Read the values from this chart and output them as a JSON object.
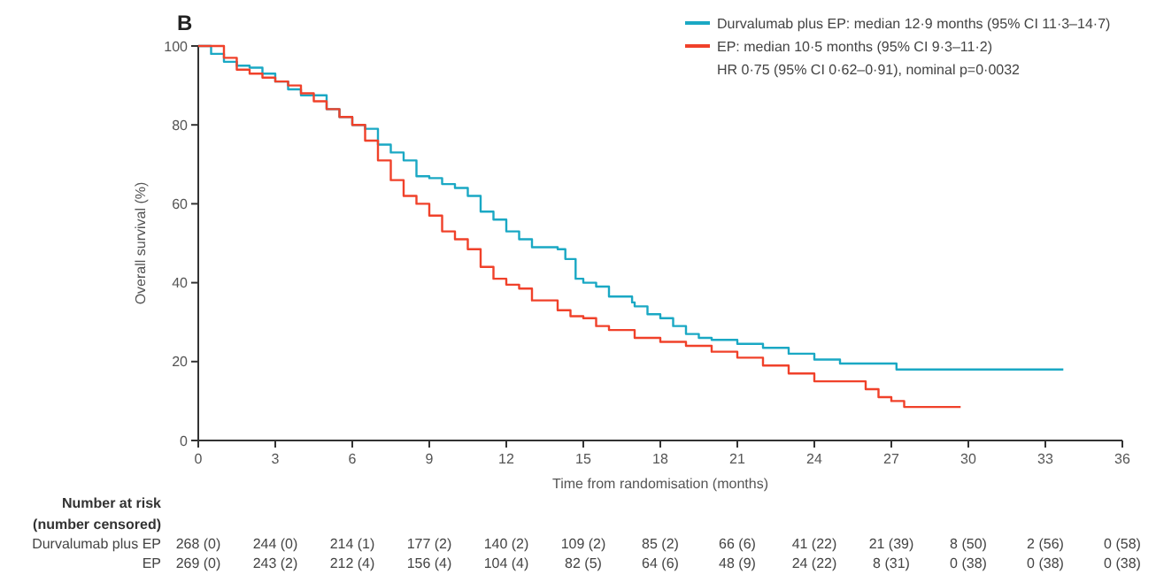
{
  "chart_data": {
    "type": "step",
    "title": "B",
    "xlabel": "Time from randomisation (months)",
    "ylabel": "Overall survival (%)",
    "xlim": [
      0,
      36
    ],
    "xticks": [
      0,
      3,
      6,
      9,
      12,
      15,
      18,
      21,
      24,
      27,
      30,
      33,
      36
    ],
    "ylim": [
      0,
      100
    ],
    "yticks": [
      0,
      20,
      40,
      60,
      80,
      100
    ],
    "legend": "top right",
    "grid": false,
    "series": [
      {
        "name": "Durvalumab plus EP: median 12·9 months (95% CI 11·3–14·7)",
        "color": "#1aa8c4",
        "x": [
          0,
          0.5,
          1,
          1.5,
          2,
          2.5,
          3,
          3.5,
          4,
          5,
          5.5,
          6,
          6.5,
          7,
          7.5,
          8,
          8.5,
          9,
          9.5,
          10,
          10.5,
          11,
          11.5,
          12,
          12.5,
          13,
          14,
          14.3,
          14.7,
          15,
          15.5,
          16,
          16.9,
          17,
          17.5,
          18,
          18.5,
          19,
          19.5,
          20,
          21,
          22,
          23,
          24,
          25,
          26,
          27,
          27.2,
          33.7
        ],
        "values": [
          100,
          98,
          96,
          95,
          94.5,
          93,
          91,
          89,
          87.5,
          84,
          82,
          80,
          79,
          75,
          73,
          71,
          67,
          66.5,
          65,
          64,
          62,
          58,
          56,
          53,
          51,
          49,
          48.5,
          46,
          41,
          40,
          39,
          36.5,
          35,
          34,
          32,
          31,
          29,
          27,
          26,
          25.5,
          24.5,
          23.5,
          22,
          20.5,
          19.5,
          19.5,
          19.5,
          18,
          18
        ]
      },
      {
        "name": "EP: median 10·5 months (95% CI 9·3–11·2)",
        "color": "#f0412a",
        "x": [
          0,
          1,
          1.5,
          2,
          2.5,
          3,
          3.5,
          4,
          4.5,
          5,
          5.5,
          6,
          6.5,
          7,
          7.5,
          8,
          8.5,
          9,
          9.5,
          10,
          10.5,
          11,
          11.5,
          12,
          12.5,
          13,
          14,
          14.5,
          15,
          15.5,
          16,
          17,
          18,
          19,
          20,
          21,
          22,
          23,
          24,
          25,
          26,
          26.5,
          27,
          27.5,
          29.7
        ],
        "values": [
          100,
          97,
          94,
          93,
          92,
          91,
          90,
          88,
          86,
          84,
          82,
          80,
          76,
          71,
          66,
          62,
          60,
          57,
          53,
          51,
          48.5,
          44,
          41,
          39.5,
          38.5,
          35.5,
          33,
          31.5,
          31,
          29,
          28,
          26,
          25,
          24,
          22.5,
          21,
          19,
          17,
          15,
          15,
          13,
          11,
          10,
          8.5,
          8.5
        ]
      }
    ],
    "annotations": [
      "HR 0·75 (95% CI 0·62–0·91), nominal p=0·0032",
      "Number at risk",
      "(number censored)",
      "Durvalumab plus EP",
      "268 (0)",
      "244 (0)",
      "214 (1)",
      "177 (2)",
      "140 (2)",
      "109 (2)",
      "85 (2)",
      "66 (6)",
      "41 (22)",
      "21 (39)",
      "8 (50)",
      "2 (56)",
      "0 (58)",
      "EP",
      "269 (0)",
      "243 (2)",
      "212 (4)",
      "156 (4)",
      "104 (4)",
      "82 (5)",
      "64 (6)",
      "48 (9)",
      "24 (22)",
      "8 (31)",
      "0 (38)",
      "0 (38)",
      "0 (38)"
    ]
  }
}
